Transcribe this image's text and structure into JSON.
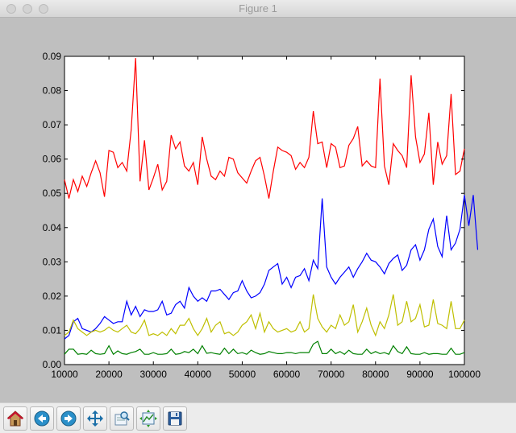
{
  "window": {
    "title": "Figure 1"
  },
  "toolbar": {
    "buttons": [
      {
        "icon": "home-icon"
      },
      {
        "icon": "back-arrow-icon"
      },
      {
        "icon": "forward-arrow-icon"
      },
      {
        "icon": "pan-icon"
      },
      {
        "icon": "zoom-icon"
      },
      {
        "icon": "subplots-icon"
      },
      {
        "icon": "save-icon"
      }
    ]
  },
  "chart_data": {
    "type": "line",
    "title": "",
    "xlabel": "",
    "ylabel": "",
    "xlim": [
      10000,
      100000
    ],
    "ylim": [
      0,
      0.09
    ],
    "grid": false,
    "x_ticks": [
      "10000",
      "20000",
      "30000",
      "40000",
      "50000",
      "60000",
      "70000",
      "80000",
      "90000",
      "100000"
    ],
    "y_ticks": [
      "0.00",
      "0.01",
      "0.02",
      "0.03",
      "0.04",
      "0.05",
      "0.06",
      "0.07",
      "0.08",
      "0.09"
    ],
    "x_start": 10000,
    "x_step": 1000,
    "series": [
      {
        "color": "#ff0000",
        "values": [
          0.054,
          0.0485,
          0.054,
          0.0505,
          0.055,
          0.052,
          0.056,
          0.0595,
          0.056,
          0.049,
          0.0625,
          0.062,
          0.0575,
          0.059,
          0.0565,
          0.0685,
          0.0895,
          0.0535,
          0.0655,
          0.051,
          0.0545,
          0.0585,
          0.051,
          0.0535,
          0.067,
          0.063,
          0.065,
          0.058,
          0.0565,
          0.059,
          0.0525,
          0.0665,
          0.06,
          0.055,
          0.054,
          0.0565,
          0.055,
          0.0605,
          0.06,
          0.056,
          0.0545,
          0.053,
          0.0565,
          0.0595,
          0.0605,
          0.055,
          0.0485,
          0.0565,
          0.0635,
          0.0625,
          0.062,
          0.061,
          0.057,
          0.059,
          0.0575,
          0.0605,
          0.074,
          0.0645,
          0.065,
          0.0575,
          0.0645,
          0.0635,
          0.0575,
          0.058,
          0.064,
          0.066,
          0.0695,
          0.058,
          0.0595,
          0.058,
          0.0575,
          0.0835,
          0.058,
          0.0525,
          0.0645,
          0.0625,
          0.061,
          0.0575,
          0.0845,
          0.0665,
          0.059,
          0.0615,
          0.0735,
          0.0525,
          0.065,
          0.0585,
          0.061,
          0.079,
          0.0555,
          0.0565,
          0.063
        ]
      },
      {
        "color": "#0000ff",
        "values": [
          0.0075,
          0.0085,
          0.0125,
          0.0135,
          0.0105,
          0.01,
          0.0095,
          0.0105,
          0.012,
          0.014,
          0.013,
          0.012,
          0.0125,
          0.0125,
          0.0185,
          0.0145,
          0.017,
          0.014,
          0.016,
          0.0155,
          0.0155,
          0.016,
          0.0185,
          0.0145,
          0.015,
          0.0175,
          0.0185,
          0.0165,
          0.0225,
          0.02,
          0.0185,
          0.0195,
          0.0185,
          0.0215,
          0.0215,
          0.022,
          0.0205,
          0.019,
          0.021,
          0.0215,
          0.0245,
          0.0215,
          0.0195,
          0.02,
          0.021,
          0.0235,
          0.0275,
          0.0285,
          0.0295,
          0.0235,
          0.0255,
          0.0225,
          0.0255,
          0.026,
          0.028,
          0.0245,
          0.0305,
          0.028,
          0.0485,
          0.0285,
          0.0255,
          0.0235,
          0.0255,
          0.027,
          0.0285,
          0.0255,
          0.028,
          0.03,
          0.0325,
          0.0305,
          0.03,
          0.0285,
          0.0265,
          0.0295,
          0.031,
          0.032,
          0.0275,
          0.029,
          0.0335,
          0.035,
          0.0305,
          0.0335,
          0.0395,
          0.0425,
          0.0345,
          0.0315,
          0.0435,
          0.0335,
          0.0355,
          0.0395,
          0.0495,
          0.0405,
          0.0495,
          0.0335
        ]
      },
      {
        "color": "#bfbf00",
        "values": [
          0.0085,
          0.0095,
          0.013,
          0.0105,
          0.0095,
          0.0085,
          0.0095,
          0.01,
          0.0095,
          0.01,
          0.011,
          0.01,
          0.0095,
          0.0105,
          0.0115,
          0.0095,
          0.009,
          0.0105,
          0.013,
          0.0085,
          0.009,
          0.0085,
          0.0095,
          0.0085,
          0.0105,
          0.009,
          0.0115,
          0.0115,
          0.0135,
          0.0105,
          0.0085,
          0.0105,
          0.0135,
          0.0095,
          0.0115,
          0.0125,
          0.009,
          0.0095,
          0.0085,
          0.0095,
          0.0115,
          0.0125,
          0.0145,
          0.0105,
          0.015,
          0.0095,
          0.0125,
          0.0105,
          0.0095,
          0.01,
          0.0105,
          0.0095,
          0.01,
          0.0125,
          0.0095,
          0.0105,
          0.0205,
          0.0135,
          0.011,
          0.0095,
          0.0115,
          0.0105,
          0.0145,
          0.0115,
          0.0125,
          0.0175,
          0.0095,
          0.0125,
          0.0165,
          0.0115,
          0.0085,
          0.0125,
          0.0105,
          0.0145,
          0.0205,
          0.0115,
          0.0125,
          0.0185,
          0.0125,
          0.0135,
          0.0175,
          0.011,
          0.0115,
          0.019,
          0.012,
          0.0115,
          0.0105,
          0.0185,
          0.0105,
          0.0105,
          0.013
        ]
      },
      {
        "color": "#008000",
        "values": [
          0.003,
          0.0045,
          0.0045,
          0.003,
          0.0032,
          0.003,
          0.0042,
          0.0032,
          0.003,
          0.0032,
          0.0055,
          0.003,
          0.004,
          0.0032,
          0.003,
          0.0035,
          0.0038,
          0.0045,
          0.003,
          0.003,
          0.0035,
          0.003,
          0.003,
          0.0032,
          0.0045,
          0.003,
          0.0032,
          0.0038,
          0.0035,
          0.0045,
          0.0032,
          0.0055,
          0.0033,
          0.0035,
          0.0032,
          0.003,
          0.0048,
          0.0032,
          0.0045,
          0.0032,
          0.0035,
          0.003,
          0.0042,
          0.0035,
          0.003,
          0.0032,
          0.0038,
          0.0035,
          0.0032,
          0.0032,
          0.0035,
          0.0035,
          0.0032,
          0.0035,
          0.0035,
          0.0035,
          0.006,
          0.0068,
          0.0032,
          0.0032,
          0.0045,
          0.0032,
          0.0038,
          0.003,
          0.0042,
          0.0032,
          0.003,
          0.003,
          0.0045,
          0.0032,
          0.0038,
          0.0032,
          0.0035,
          0.003,
          0.0055,
          0.0038,
          0.0032,
          0.0052,
          0.0032,
          0.003,
          0.003,
          0.0035,
          0.003,
          0.0032,
          0.0032,
          0.003,
          0.003,
          0.0048,
          0.003,
          0.003,
          0.0035
        ]
      }
    ]
  }
}
